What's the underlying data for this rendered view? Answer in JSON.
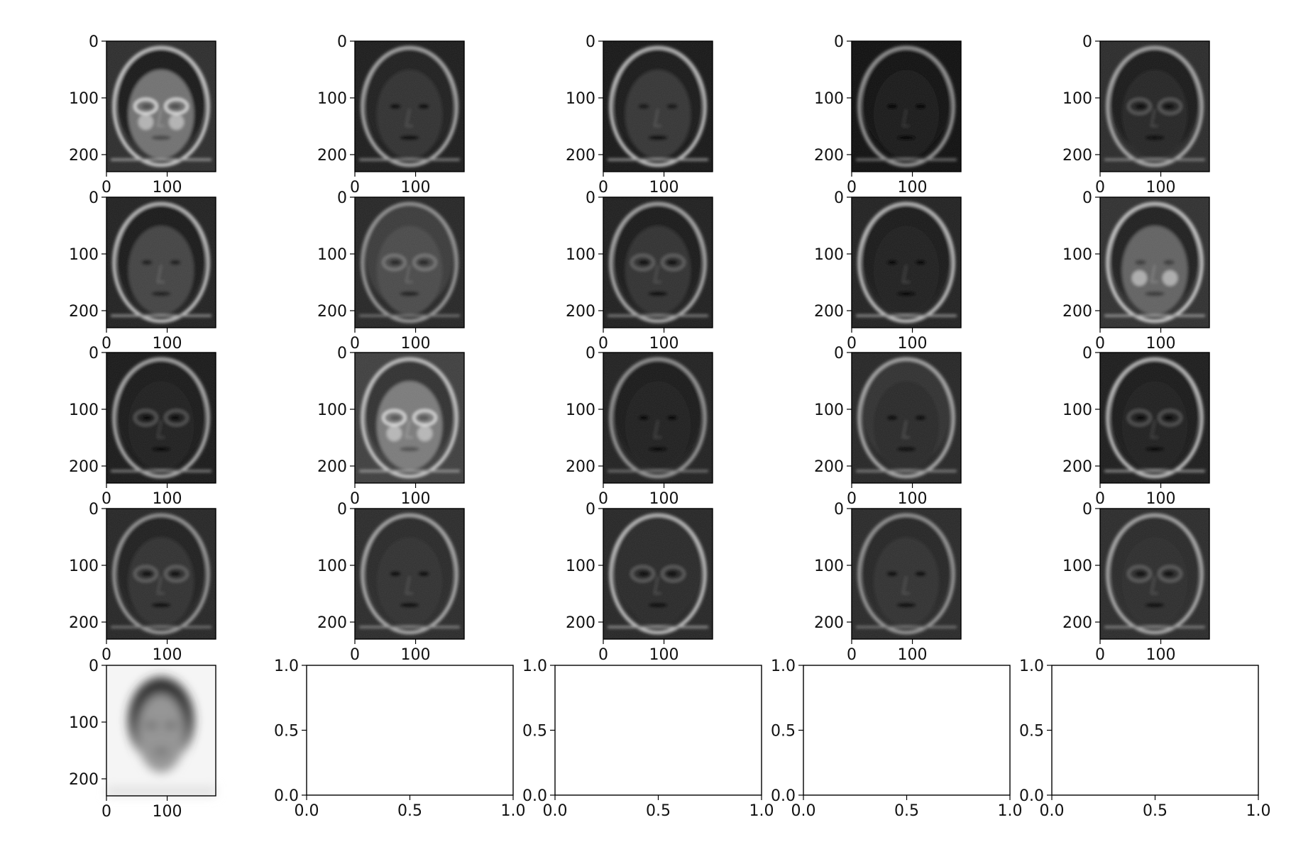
{
  "figure": {
    "background": "#ffffff",
    "axis_color": "#000000",
    "rows": 5,
    "cols": 5
  },
  "chart_data": [
    {
      "type": "heatmap",
      "panel": 1,
      "description": "grayscale face image",
      "xlim": [
        0,
        180
      ],
      "ylim": [
        230,
        0
      ],
      "xticks": [
        "0",
        "100"
      ],
      "yticks": [
        "0",
        "100",
        "200"
      ],
      "xtick_values": [
        0,
        100
      ],
      "ytick_values": [
        0,
        100,
        200
      ],
      "face": {
        "bg": 42,
        "skin": 110,
        "hair": 20,
        "face_light": "bright",
        "glasses": true
      }
    },
    {
      "type": "heatmap",
      "panel": 2,
      "description": "grayscale face image",
      "xlim": [
        0,
        180
      ],
      "ylim": [
        230,
        0
      ],
      "xticks": [
        "0",
        "100"
      ],
      "yticks": [
        "0",
        "100",
        "200"
      ],
      "xtick_values": [
        0,
        100
      ],
      "ytick_values": [
        0,
        100,
        200
      ],
      "face": {
        "bg": 25,
        "skin": 45,
        "hair": 30,
        "face_light": "dark",
        "glasses": false
      }
    },
    {
      "type": "heatmap",
      "panel": 3,
      "description": "grayscale face image",
      "xlim": [
        0,
        180
      ],
      "ylim": [
        230,
        0
      ],
      "xticks": [
        "0",
        "100"
      ],
      "yticks": [
        "0",
        "100",
        "200"
      ],
      "xtick_values": [
        0,
        100
      ],
      "ytick_values": [
        0,
        100,
        200
      ],
      "face": {
        "bg": 20,
        "skin": 50,
        "hair": 25,
        "face_light": "dark",
        "glasses": false
      }
    },
    {
      "type": "heatmap",
      "panel": 4,
      "description": "grayscale face image",
      "xlim": [
        0,
        180
      ],
      "ylim": [
        230,
        0
      ],
      "xticks": [
        "0",
        "100"
      ],
      "yticks": [
        "0",
        "100",
        "200"
      ],
      "xtick_values": [
        0,
        100
      ],
      "ytick_values": [
        0,
        100,
        200
      ],
      "face": {
        "bg": 12,
        "skin": 18,
        "hair": 15,
        "face_light": "dark",
        "glasses": false
      }
    },
    {
      "type": "heatmap",
      "panel": 5,
      "description": "grayscale face image",
      "xlim": [
        0,
        180
      ],
      "ylim": [
        230,
        0
      ],
      "xticks": [
        "0",
        "100"
      ],
      "yticks": [
        "0",
        "100",
        "200"
      ],
      "xtick_values": [
        0,
        100
      ],
      "ytick_values": [
        0,
        100,
        200
      ],
      "face": {
        "bg": 40,
        "skin": 35,
        "hair": 18,
        "face_light": "dark",
        "glasses": true
      }
    },
    {
      "type": "heatmap",
      "panel": 6,
      "description": "grayscale face image",
      "xlim": [
        0,
        180
      ],
      "ylim": [
        230,
        0
      ],
      "xticks": [
        "0",
        "100"
      ],
      "yticks": [
        "0",
        "100",
        "200"
      ],
      "xtick_values": [
        0,
        100
      ],
      "ytick_values": [
        0,
        100,
        200
      ],
      "face": {
        "bg": 30,
        "skin": 65,
        "hair": 20,
        "face_light": "mid",
        "glasses": false
      }
    },
    {
      "type": "heatmap",
      "panel": 7,
      "description": "grayscale face image",
      "xlim": [
        0,
        180
      ],
      "ylim": [
        230,
        0
      ],
      "xticks": [
        "0",
        "100"
      ],
      "yticks": [
        "0",
        "100",
        "200"
      ],
      "xtick_values": [
        0,
        100
      ],
      "ytick_values": [
        0,
        100,
        200
      ],
      "face": {
        "bg": 35,
        "skin": 70,
        "hair": 55,
        "face_light": "mid",
        "glasses": true
      }
    },
    {
      "type": "heatmap",
      "panel": 8,
      "description": "grayscale face image",
      "xlim": [
        0,
        180
      ],
      "ylim": [
        230,
        0
      ],
      "xticks": [
        "0",
        "100"
      ],
      "yticks": [
        "0",
        "100",
        "200"
      ],
      "xtick_values": [
        0,
        100
      ],
      "ytick_values": [
        0,
        100,
        200
      ],
      "face": {
        "bg": 28,
        "skin": 45,
        "hair": 22,
        "face_light": "dark",
        "glasses": true
      }
    },
    {
      "type": "heatmap",
      "panel": 9,
      "description": "grayscale face image",
      "xlim": [
        0,
        180
      ],
      "ylim": [
        230,
        0
      ],
      "xticks": [
        "0",
        "100"
      ],
      "yticks": [
        "0",
        "100",
        "200"
      ],
      "xtick_values": [
        0,
        100
      ],
      "ytick_values": [
        0,
        100,
        200
      ],
      "face": {
        "bg": 30,
        "skin": 30,
        "hair": 20,
        "face_light": "dark",
        "glasses": false
      }
    },
    {
      "type": "heatmap",
      "panel": 10,
      "description": "grayscale face image",
      "xlim": [
        0,
        180
      ],
      "ylim": [
        230,
        0
      ],
      "xticks": [
        "0",
        "100"
      ],
      "yticks": [
        "0",
        "100",
        "200"
      ],
      "xtick_values": [
        0,
        100
      ],
      "ytick_values": [
        0,
        100,
        200
      ],
      "face": {
        "bg": 45,
        "skin": 95,
        "hair": 30,
        "face_light": "bright",
        "glasses": false
      }
    },
    {
      "type": "heatmap",
      "panel": 11,
      "description": "grayscale face image",
      "xlim": [
        0,
        180
      ],
      "ylim": [
        230,
        0
      ],
      "xticks": [
        "0",
        "100"
      ],
      "yticks": [
        "0",
        "100",
        "200"
      ],
      "xtick_values": [
        0,
        100
      ],
      "ytick_values": [
        0,
        100,
        200
      ],
      "face": {
        "bg": 22,
        "skin": 30,
        "hair": 25,
        "face_light": "dark",
        "glasses": true
      }
    },
    {
      "type": "heatmap",
      "panel": 12,
      "description": "grayscale face image",
      "xlim": [
        0,
        180
      ],
      "ylim": [
        230,
        0
      ],
      "xticks": [
        "0",
        "100"
      ],
      "yticks": [
        "0",
        "100",
        "200"
      ],
      "xtick_values": [
        0,
        100
      ],
      "ytick_values": [
        0,
        100,
        200
      ],
      "face": {
        "bg": 60,
        "skin": 120,
        "hair": 45,
        "face_light": "bright",
        "glasses": true
      }
    },
    {
      "type": "heatmap",
      "panel": 13,
      "description": "grayscale face image",
      "xlim": [
        0,
        180
      ],
      "ylim": [
        230,
        0
      ],
      "xticks": [
        "0",
        "100"
      ],
      "yticks": [
        "0",
        "100",
        "200"
      ],
      "xtick_values": [
        0,
        100
      ],
      "ytick_values": [
        0,
        100,
        200
      ],
      "face": {
        "bg": 30,
        "skin": 28,
        "hair": 22,
        "face_light": "dark",
        "glasses": false
      }
    },
    {
      "type": "heatmap",
      "panel": 14,
      "description": "grayscale face image",
      "xlim": [
        0,
        180
      ],
      "ylim": [
        230,
        0
      ],
      "xticks": [
        "0",
        "100"
      ],
      "yticks": [
        "0",
        "100",
        "200"
      ],
      "xtick_values": [
        0,
        100
      ],
      "ytick_values": [
        0,
        100,
        200
      ],
      "face": {
        "bg": 35,
        "skin": 40,
        "hair": 45,
        "face_light": "dark",
        "glasses": false
      }
    },
    {
      "type": "heatmap",
      "panel": 15,
      "description": "grayscale face image",
      "xlim": [
        0,
        180
      ],
      "ylim": [
        230,
        0
      ],
      "xticks": [
        "0",
        "100"
      ],
      "yticks": [
        "0",
        "100",
        "200"
      ],
      "xtick_values": [
        0,
        100
      ],
      "ytick_values": [
        0,
        100,
        200
      ],
      "face": {
        "bg": 25,
        "skin": 28,
        "hair": 22,
        "face_light": "dark",
        "glasses": true
      }
    },
    {
      "type": "heatmap",
      "panel": 16,
      "description": "grayscale face image",
      "xlim": [
        0,
        180
      ],
      "ylim": [
        230,
        0
      ],
      "xticks": [
        "0",
        "100"
      ],
      "yticks": [
        "0",
        "100",
        "200"
      ],
      "xtick_values": [
        0,
        100
      ],
      "ytick_values": [
        0,
        100,
        200
      ],
      "face": {
        "bg": 35,
        "skin": 45,
        "hair": 30,
        "face_light": "dark",
        "glasses": true
      }
    },
    {
      "type": "heatmap",
      "panel": 17,
      "description": "grayscale face image",
      "xlim": [
        0,
        180
      ],
      "ylim": [
        230,
        0
      ],
      "xticks": [
        "0",
        "100"
      ],
      "yticks": [
        "0",
        "100",
        "200"
      ],
      "xtick_values": [
        0,
        100
      ],
      "ytick_values": [
        0,
        100,
        200
      ],
      "face": {
        "bg": 40,
        "skin": 45,
        "hair": 40,
        "face_light": "dark",
        "glasses": false
      }
    },
    {
      "type": "heatmap",
      "panel": 18,
      "description": "grayscale face image",
      "xlim": [
        0,
        180
      ],
      "ylim": [
        230,
        0
      ],
      "xticks": [
        "0",
        "100"
      ],
      "yticks": [
        "0",
        "100",
        "200"
      ],
      "xtick_values": [
        0,
        100
      ],
      "ytick_values": [
        0,
        100,
        200
      ],
      "face": {
        "bg": 35,
        "skin": 40,
        "hair": 38,
        "face_light": "dark",
        "glasses": true
      }
    },
    {
      "type": "heatmap",
      "panel": 19,
      "description": "grayscale face image",
      "xlim": [
        0,
        180
      ],
      "ylim": [
        230,
        0
      ],
      "xticks": [
        "0",
        "100"
      ],
      "yticks": [
        "0",
        "100",
        "200"
      ],
      "xtick_values": [
        0,
        100
      ],
      "ytick_values": [
        0,
        100,
        200
      ],
      "face": {
        "bg": 38,
        "skin": 45,
        "hair": 35,
        "face_light": "dark",
        "glasses": false
      }
    },
    {
      "type": "heatmap",
      "panel": 20,
      "description": "grayscale face image",
      "xlim": [
        0,
        180
      ],
      "ylim": [
        230,
        0
      ],
      "xticks": [
        "0",
        "100"
      ],
      "yticks": [
        "0",
        "100",
        "200"
      ],
      "xtick_values": [
        0,
        100
      ],
      "ytick_values": [
        0,
        100,
        200
      ],
      "face": {
        "bg": 40,
        "skin": 42,
        "hair": 40,
        "face_light": "dark",
        "glasses": true
      }
    },
    {
      "type": "heatmap",
      "panel": 21,
      "description": "mean face, light background",
      "xlim": [
        0,
        180
      ],
      "ylim": [
        230,
        0
      ],
      "xticks": [
        "0",
        "100"
      ],
      "yticks": [
        "0",
        "100",
        "200"
      ],
      "xtick_values": [
        0,
        100
      ],
      "ytick_values": [
        0,
        100,
        200
      ],
      "face": {
        "bg": 245,
        "skin": 150,
        "hair": 45,
        "face_light": "mean",
        "glasses": false
      }
    },
    {
      "type": "empty",
      "panel": 22,
      "xlim": [
        0.0,
        1.0
      ],
      "ylim": [
        0.0,
        1.0
      ],
      "xticks": [
        "0.0",
        "0.5",
        "1.0"
      ],
      "yticks": [
        "0.0",
        "0.5",
        "1.0"
      ],
      "xtick_values": [
        0.0,
        0.5,
        1.0
      ],
      "ytick_values": [
        0.0,
        0.5,
        1.0
      ]
    },
    {
      "type": "empty",
      "panel": 23,
      "xlim": [
        0.0,
        1.0
      ],
      "ylim": [
        0.0,
        1.0
      ],
      "xticks": [
        "0.0",
        "0.5",
        "1.0"
      ],
      "yticks": [
        "0.0",
        "0.5",
        "1.0"
      ],
      "xtick_values": [
        0.0,
        0.5,
        1.0
      ],
      "ytick_values": [
        0.0,
        0.5,
        1.0
      ]
    },
    {
      "type": "empty",
      "panel": 24,
      "xlim": [
        0.0,
        1.0
      ],
      "ylim": [
        0.0,
        1.0
      ],
      "xticks": [
        "0.0",
        "0.5",
        "1.0"
      ],
      "yticks": [
        "0.0",
        "0.5",
        "1.0"
      ],
      "xtick_values": [
        0.0,
        0.5,
        1.0
      ],
      "ytick_values": [
        0.0,
        0.5,
        1.0
      ]
    },
    {
      "type": "empty",
      "panel": 25,
      "xlim": [
        0.0,
        1.0
      ],
      "ylim": [
        0.0,
        1.0
      ],
      "xticks": [
        "0.0",
        "0.5",
        "1.0"
      ],
      "yticks": [
        "0.0",
        "0.5",
        "1.0"
      ],
      "xtick_values": [
        0.0,
        0.5,
        1.0
      ],
      "ytick_values": [
        0.0,
        0.5,
        1.0
      ]
    }
  ]
}
